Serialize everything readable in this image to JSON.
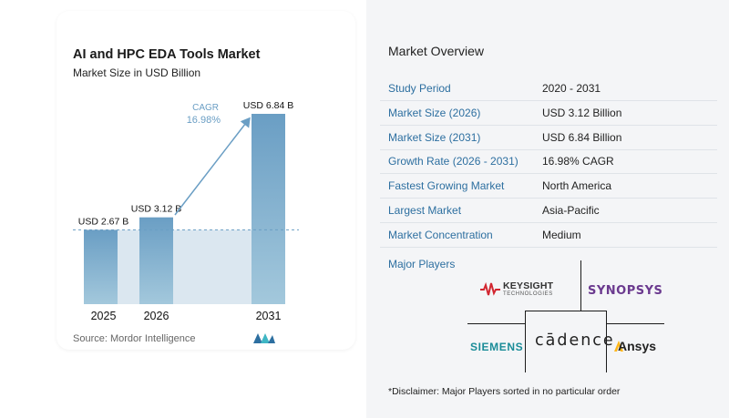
{
  "chart": {
    "title": "AI and HPC EDA Tools Market",
    "subtitle": "Market Size in USD Billion",
    "source": "Source: Mordor Intelligence",
    "cagr_label": "CAGR",
    "cagr_value": "16.98%"
  },
  "chart_data": {
    "type": "bar",
    "title": "AI and HPC EDA Tools Market",
    "subtitle": "Market Size in USD Billion",
    "categories": [
      "2025",
      "2026",
      "2031"
    ],
    "values": [
      2.67,
      3.12,
      6.84
    ],
    "data_labels": [
      "USD 2.67 B",
      "USD 3.12 B",
      "USD 6.84 B"
    ],
    "annotation": "CAGR 16.98%",
    "ylim": [
      0,
      6.84
    ],
    "colors": {
      "bar": "#6a9ec4",
      "bar_light": "#a3c8dc",
      "band": "#dbe7f0",
      "arrow": "#6a9ec4",
      "dashed": "#6a9ec4"
    }
  },
  "overview": {
    "title": "Market Overview",
    "rows": [
      {
        "label": "Study Period",
        "value": "2020 - 2031"
      },
      {
        "label": "Market Size (2026)",
        "value": "USD 3.12 Billion"
      },
      {
        "label": "Market Size (2031)",
        "value": "USD 6.84 Billion"
      },
      {
        "label": "Growth Rate (2026 - 2031)",
        "value": "16.98% CAGR"
      },
      {
        "label": "Fastest Growing Market",
        "value": "North America"
      },
      {
        "label": "Largest Market",
        "value": "Asia-Pacific"
      },
      {
        "label": "Market Concentration",
        "value": "Medium"
      }
    ]
  },
  "players": {
    "title": "Major Players",
    "keysight": {
      "name": "KEYSIGHT",
      "sub": "TECHNOLOGIES"
    },
    "synopsys": "SYNOPSYS",
    "siemens": "SIEMENS",
    "cadence": "cādence",
    "ansys": "Ansys"
  },
  "disclaimer": "*Disclaimer: Major Players sorted in no particular order"
}
